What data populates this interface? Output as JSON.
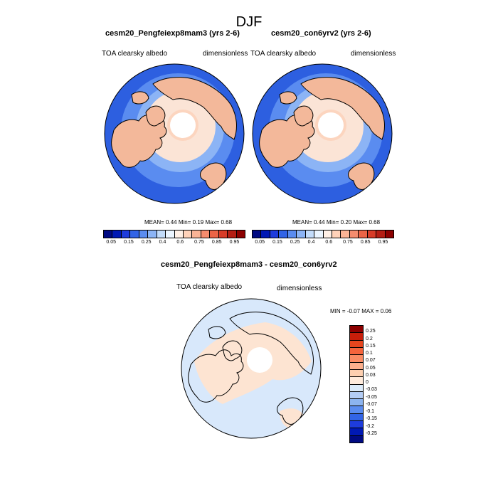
{
  "figure": {
    "title": "DJF"
  },
  "panels": [
    {
      "title": "cesm20_Pengfeiexp8mam3 (yrs 2-6)",
      "variable": "TOA clearsky albedo",
      "units": "dimensionless",
      "stats": {
        "mean_label": "MEAN=",
        "mean": "0.44",
        "min_label": "Min=",
        "min": "0.19",
        "max_label": "Max=",
        "max": "0.68"
      }
    },
    {
      "title": "cesm20_con6yrv2 (yrs 2-6)",
      "variable": "TOA clearsky albedo",
      "units": "dimensionless",
      "stats": {
        "mean_label": "MEAN=",
        "mean": "0.44",
        "min_label": "Min=",
        "min": "0.20",
        "max_label": "Max=",
        "max": "0.68"
      }
    },
    {
      "title": "cesm20_Pengfeiexp8mam3 - cesm20_con6yrv2",
      "variable": "TOA clearsky albedo",
      "units": "dimensionless",
      "stats": {
        "min_label": "MIN =",
        "min": "-0.07",
        "max_label": "MAX =",
        "max": "0.06"
      }
    }
  ],
  "chart_data": [
    {
      "type": "heatmap",
      "projection": "north-polar-stereographic",
      "title": "cesm20_Pengfeiexp8mam3 (yrs 2-6)",
      "colorbar": {
        "orientation": "horizontal",
        "labels": [
          "0.05",
          "0.15",
          "0.25",
          "0.4",
          "0.6",
          "0.75",
          "0.85",
          "0.95"
        ],
        "colors": [
          "#000a82",
          "#0019b4",
          "#1e3cdc",
          "#3264e6",
          "#5a8cf0",
          "#8cb4f5",
          "#c3dcfa",
          "#ebf5ff",
          "#fff0e6",
          "#ffd2b9",
          "#fab496",
          "#f58c6e",
          "#eb6446",
          "#d73c28",
          "#b41e14",
          "#8c0000"
        ]
      },
      "values_summary": {
        "mean": 0.44,
        "min": 0.19,
        "max": 0.68
      }
    },
    {
      "type": "heatmap",
      "projection": "north-polar-stereographic",
      "title": "cesm20_con6yrv2 (yrs 2-6)",
      "colorbar": {
        "orientation": "horizontal",
        "labels": [
          "0.05",
          "0.15",
          "0.25",
          "0.4",
          "0.6",
          "0.75",
          "0.85",
          "0.95"
        ],
        "colors": [
          "#000a82",
          "#0019b4",
          "#1e3cdc",
          "#3264e6",
          "#5a8cf0",
          "#8cb4f5",
          "#c3dcfa",
          "#ebf5ff",
          "#fff0e6",
          "#ffd2b9",
          "#fab496",
          "#f58c6e",
          "#eb6446",
          "#d73c28",
          "#b41e14",
          "#8c0000"
        ]
      },
      "values_summary": {
        "mean": 0.44,
        "min": 0.2,
        "max": 0.68
      }
    },
    {
      "type": "heatmap",
      "projection": "north-polar-stereographic",
      "title": "cesm20_Pengfeiexp8mam3 - cesm20_con6yrv2",
      "colorbar": {
        "orientation": "vertical",
        "labels": [
          "0.25",
          "0.2",
          "0.15",
          "0.1",
          "0.07",
          "0.05",
          "0.03",
          "0",
          "-0.03",
          "-0.05",
          "-0.07",
          "-0.1",
          "-0.15",
          "-0.2",
          "-0.25"
        ],
        "colors": [
          "#8c0000",
          "#c81e0a",
          "#e6461e",
          "#f5643c",
          "#fa8c64",
          "#fcaf8c",
          "#fdcfb0",
          "#ffebdc",
          "#dcebfa",
          "#b4cdf5",
          "#8cb4f0",
          "#5a8cf0",
          "#3264e6",
          "#1e3cdc",
          "#0019b4",
          "#000a82"
        ]
      },
      "values_summary": {
        "min": -0.07,
        "max": 0.06
      }
    }
  ],
  "colors": {
    "ocean_dark": "#2d5fe0",
    "ocean_mid": "#5a8cf0",
    "ocean_light": "#8cb4f5",
    "land_warm": "#f3b89a",
    "land_light": "#fcd5bf",
    "pale": "#fbe4d6",
    "diff_bg": "#d8e8fb",
    "diff_warm": "#fde4d2"
  }
}
